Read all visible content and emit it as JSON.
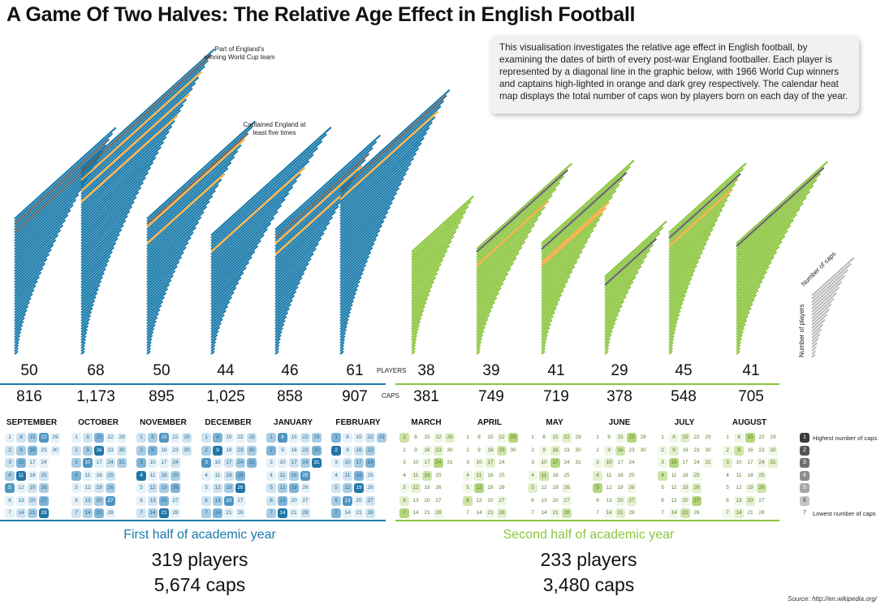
{
  "title": "A Game Of Two Halves: The Relative Age Effect in English Football",
  "intro_text": "This visualisation investigates the relative age effect in English football, by examining the dates of birth of every post-war England footballer. Each player is represented by a diagonal line in the graphic below, with 1966 World Cup winners and captains high-lighted in orange and dark grey respectively. The calendar heat map displays the total number of caps won by players born on each day of the year.",
  "annotations": {
    "world_cup": "Part of England's winning World Cup team",
    "captain": "Captained England at least five times",
    "legend_caps": "Number of caps",
    "legend_players": "Number of players"
  },
  "labels": {
    "players": "PLAYERS",
    "caps": "CAPS"
  },
  "colors": {
    "first_half": "#1a7bab",
    "second_half": "#8cc63f",
    "world_cup": "#f4a93a",
    "captain": "#606060"
  },
  "chart_data": {
    "type": "bar",
    "categories": [
      "SEPTEMBER",
      "OCTOBER",
      "NOVEMBER",
      "DECEMBER",
      "JANUARY",
      "FEBRUARY",
      "MARCH",
      "APRIL",
      "MAY",
      "JUNE",
      "JULY",
      "AUGUST"
    ],
    "series": [
      {
        "name": "PLAYERS",
        "values": [
          50,
          68,
          50,
          44,
          46,
          61,
          38,
          39,
          41,
          29,
          45,
          41
        ]
      },
      {
        "name": "CAPS",
        "values": [
          816,
          1173,
          895,
          1025,
          858,
          907,
          381,
          749,
          719,
          378,
          548,
          705
        ]
      }
    ],
    "display_players": [
      "50",
      "68",
      "50",
      "44",
      "46",
      "61",
      "38",
      "39",
      "41",
      "29",
      "45",
      "41"
    ],
    "display_caps": [
      "816",
      "1,173",
      "895",
      "1,025",
      "858",
      "907",
      "381",
      "749",
      "719",
      "378",
      "548",
      "705"
    ]
  },
  "halves": [
    {
      "label": "First half of academic year",
      "players": "319 players",
      "caps": "5,674 caps"
    },
    {
      "label": "Second half of academic year",
      "players": "233 players",
      "caps": "3,480 caps"
    }
  ],
  "heat_legend": {
    "levels": [
      "1",
      "2",
      "3",
      "4",
      "5",
      "6",
      "7"
    ],
    "highest": "Highest number of caps",
    "lowest": "Lowest number of caps"
  },
  "source": "Source: http://en.wikipedia.org/"
}
